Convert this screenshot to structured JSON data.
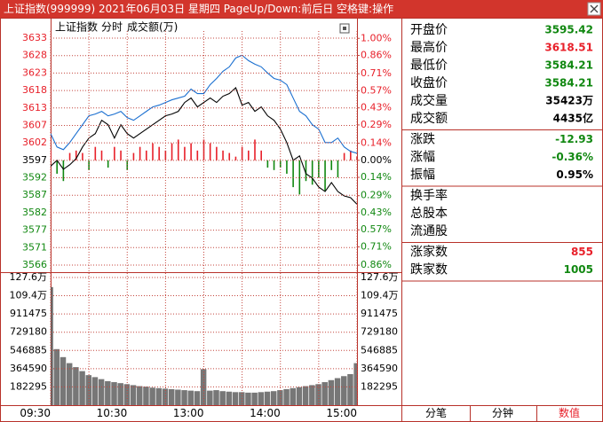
{
  "window": {
    "title": "上证指数(999999)  2021年06月03日 星期四 PageUp/Down:前后日 空格键:操作"
  },
  "chart_data": [
    {
      "type": "line",
      "header": [
        "上证指数",
        "分时",
        "成交额(万)"
      ],
      "x": [
        0,
        5,
        10,
        15,
        20,
        25,
        30,
        35,
        40,
        45,
        50,
        55,
        60,
        65,
        70,
        75,
        80,
        85,
        90,
        95,
        100,
        105,
        110,
        115,
        120,
        125,
        130,
        135,
        140,
        145,
        150,
        155,
        160,
        165,
        170,
        175,
        180,
        185,
        190,
        195,
        200,
        205,
        210,
        215,
        220,
        225,
        230,
        235,
        240
      ],
      "xlim": [
        0,
        240
      ],
      "ylim": [
        3564.47,
        3635.22
      ],
      "yticks": [
        {
          "value": 3566.3,
          "label": "3566"
        },
        {
          "value": 3571.44,
          "label": "3571"
        },
        {
          "value": 3576.58,
          "label": "3577"
        },
        {
          "value": 3581.72,
          "label": "3582"
        },
        {
          "value": 3586.86,
          "label": "3587"
        },
        3592,
        {
          "value": 3597.14,
          "label": "3597"
        },
        {
          "value": 3602.28,
          "label": "3602"
        },
        {
          "value": 3607.42,
          "label": "3607"
        },
        {
          "value": 3612.56,
          "label": "3613"
        },
        {
          "value": 3617.7,
          "label": "3618"
        },
        {
          "value": 3622.84,
          "label": "3623"
        },
        {
          "value": 3627.98,
          "label": "3628"
        },
        {
          "value": 3633.12,
          "label": "3633"
        }
      ],
      "y2lim": [
        -0.91,
        1.06
      ],
      "y2ticks": [
        {
          "value": -0.86,
          "label": "0.86%"
        },
        {
          "value": -0.71,
          "label": "0.71%"
        },
        {
          "value": -0.57,
          "label": "0.57%"
        },
        {
          "value": -0.43,
          "label": "0.43%"
        },
        {
          "value": -0.29,
          "label": "0.29%"
        },
        {
          "value": -0.14,
          "label": "0.14%"
        },
        {
          "value": 0,
          "label": "0.00%"
        },
        {
          "value": 0.14,
          "label": "0.14%"
        },
        {
          "value": 0.29,
          "label": "0.29%"
        },
        {
          "value": 0.43,
          "label": "0.43%"
        },
        {
          "value": 0.57,
          "label": "0.57%"
        },
        {
          "value": 0.71,
          "label": "0.71%"
        },
        {
          "value": 0.86,
          "label": "0.86%"
        },
        {
          "value": 1,
          "label": "1.00%"
        }
      ],
      "up_color": "#e8202a",
      "down_color": "#118811",
      "flat_color": "#000000",
      "grid": true,
      "series": [
        {
          "type": "line",
          "color": "#000000",
          "values": [
            3595.42,
            3597.14,
            3594.52,
            3595.83,
            3597.66,
            3601.07,
            3603.7,
            3605.01,
            3608.94,
            3607.63,
            3603.7,
            3607.63,
            3605.01,
            3603.7,
            3605.01,
            3606.32,
            3607.63,
            3608.94,
            3610.25,
            3610.77,
            3611.56,
            3614.18,
            3615.49,
            3612.87,
            3614.18,
            3615.49,
            3614.18,
            3616.02,
            3616.81,
            3618.51,
            3613.4,
            3614.18,
            3611.56,
            3612.87,
            3610.25,
            3608.94,
            3606.32,
            3602.38,
            3597.14,
            3598.45,
            3593.21,
            3591.9,
            3589.27,
            3587.96,
            3590.59,
            3587.96,
            3586.65,
            3586.13,
            3584.21
          ]
        },
        {
          "type": "line",
          "color": "#1a6fd0",
          "values": [
            3605.01,
            3601.07,
            3600.29,
            3602.38,
            3605.01,
            3607.63,
            3610.25,
            3610.77,
            3611.56,
            3610.25,
            3610.77,
            3611.56,
            3609.73,
            3608.94,
            3610.25,
            3611.56,
            3612.87,
            3613.4,
            3614.18,
            3614.97,
            3615.49,
            3616.02,
            3618.12,
            3616.81,
            3616.81,
            3619.43,
            3621.26,
            3623.36,
            3624.67,
            3627.29,
            3628.08,
            3626.51,
            3625.46,
            3624.67,
            3622.84,
            3621.26,
            3620.74,
            3619.43,
            3615.49,
            3611.56,
            3610.25,
            3607.63,
            3606.32,
            3602.38,
            3602.38,
            3603.7,
            3601.07,
            3599.76,
            3599.24
          ]
        },
        {
          "type": "bar",
          "axis": "y2",
          "values": [
            0.08,
            -0.11,
            -0.17,
            0.06,
            0.08,
            0.06,
            -0.08,
            0.11,
            0.08,
            -0.06,
            0.11,
            0.08,
            -0.08,
            0.06,
            0.11,
            0.08,
            0.14,
            0.11,
            0.08,
            0.14,
            0.17,
            0.11,
            0.14,
            0.08,
            0.17,
            0.14,
            0.11,
            0.08,
            0.06,
            0.03,
            0.11,
            0.08,
            0.17,
            0.08,
            -0.06,
            -0.08,
            -0.06,
            -0.11,
            -0.22,
            -0.28,
            -0.17,
            -0.2,
            -0.14,
            -0.25,
            -0.08,
            -0.14,
            0.06,
            0.08,
            0.03
          ]
        }
      ]
    },
    {
      "type": "bar",
      "x": [
        0,
        5,
        10,
        15,
        20,
        25,
        30,
        35,
        40,
        45,
        50,
        55,
        60,
        65,
        70,
        75,
        80,
        85,
        90,
        95,
        100,
        105,
        110,
        115,
        120,
        125,
        130,
        135,
        140,
        145,
        150,
        155,
        160,
        165,
        170,
        175,
        180,
        185,
        190,
        195,
        200,
        205,
        210,
        215,
        220,
        225,
        230,
        235,
        240
      ],
      "xlim": [
        0,
        240
      ],
      "xticks": [
        {
          "value": 0,
          "label": "09:30"
        },
        {
          "value": 60,
          "label": "10:30"
        },
        {
          "value": 120,
          "label": "13:00"
        },
        {
          "value": 180,
          "label": "14:00"
        },
        {
          "value": 240,
          "label": "15:00"
        }
      ],
      "ylim": [
        0,
        1320000
      ],
      "yticks": [
        182295,
        364590,
        546885,
        729180,
        911475,
        {
          "value": 1093770,
          "label": "109.4万"
        },
        {
          "value": 1276065,
          "label": "127.6万"
        }
      ],
      "color": "#4a4a4a",
      "grid": true,
      "values": [
        1180000,
        560000,
        480000,
        420000,
        380000,
        340000,
        300000,
        280000,
        260000,
        240000,
        230000,
        220000,
        210000,
        200000,
        190000,
        185000,
        175000,
        170000,
        165000,
        160000,
        155000,
        150000,
        145000,
        140000,
        360000,
        145000,
        150000,
        140000,
        135000,
        130000,
        130000,
        125000,
        125000,
        130000,
        135000,
        140000,
        150000,
        160000,
        170000,
        180000,
        190000,
        200000,
        210000,
        230000,
        250000,
        270000,
        290000,
        310000,
        420000
      ]
    }
  ],
  "quote_panel": {
    "groups": [
      [
        {
          "label": "开盘价",
          "value": 3595.42,
          "color": "#118811"
        },
        {
          "label": "最高价",
          "value": 3618.51,
          "color": "#e8202a"
        },
        {
          "label": "最低价",
          "value": 3584.21,
          "color": "#118811"
        },
        {
          "label": "收盘价",
          "value": 3584.21,
          "color": "#118811"
        },
        {
          "label": "成交量",
          "value": "35423万",
          "color": "#000000"
        },
        {
          "label": "成交额",
          "value": "4435亿",
          "color": "#000000"
        }
      ],
      [
        {
          "label": "涨跌",
          "value": -12.93,
          "color": "#118811"
        },
        {
          "label": "涨幅",
          "value": "-0.36%",
          "color": "#118811"
        },
        {
          "label": "振幅",
          "value": "0.95%",
          "color": "#000000"
        }
      ],
      [
        {
          "label": "换手率"
        },
        {
          "label": "总股本"
        },
        {
          "label": "流通股"
        }
      ],
      [
        {
          "label": "涨家数",
          "value": 855,
          "color": "#e8202a"
        },
        {
          "label": "跌家数",
          "value": 1005,
          "color": "#118811"
        }
      ]
    ]
  },
  "tabs": {
    "items": [
      "分笔",
      "分钟",
      "数值"
    ],
    "active": 2
  }
}
